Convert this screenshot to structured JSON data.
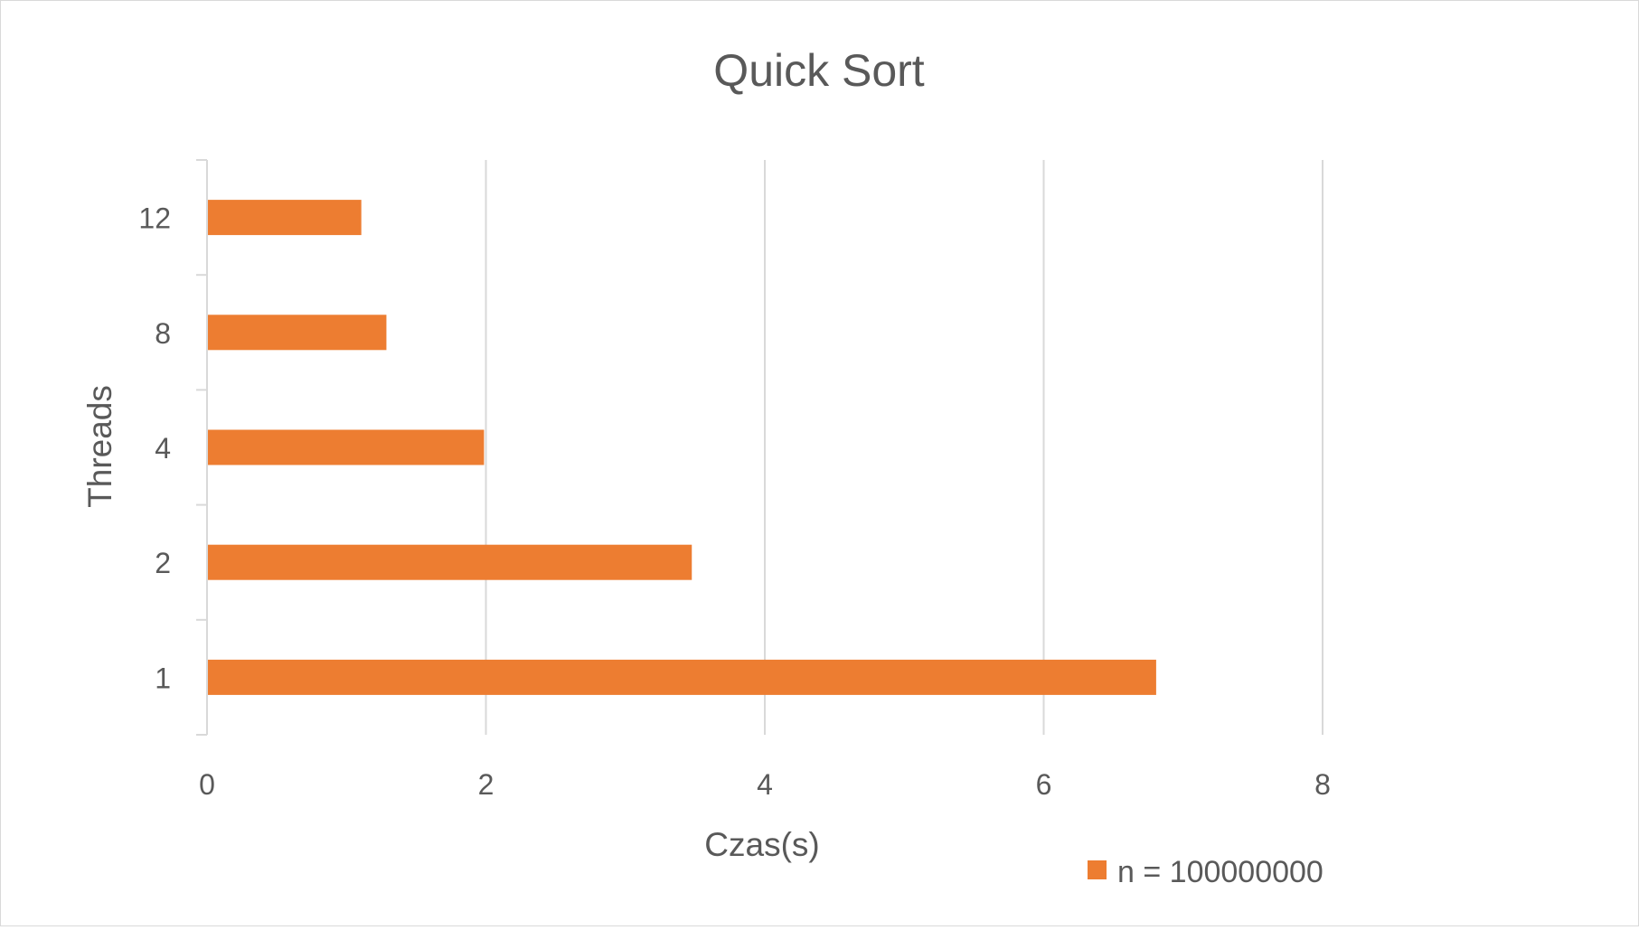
{
  "chart_data": {
    "type": "bar",
    "orientation": "horizontal",
    "title": "Quick Sort",
    "xlabel": "Czas(s)",
    "ylabel": "Threads",
    "categories": [
      "1",
      "2",
      "4",
      "8",
      "12"
    ],
    "series": [
      {
        "name": "n = 100000000",
        "color": "#ED7D31",
        "values": [
          6.8,
          3.47,
          1.98,
          1.28,
          1.1
        ]
      }
    ],
    "xlim": [
      0,
      8
    ],
    "xticks": [
      "0",
      "2",
      "4",
      "6",
      "8"
    ],
    "grid": true,
    "legend_position": "bottom-right"
  }
}
